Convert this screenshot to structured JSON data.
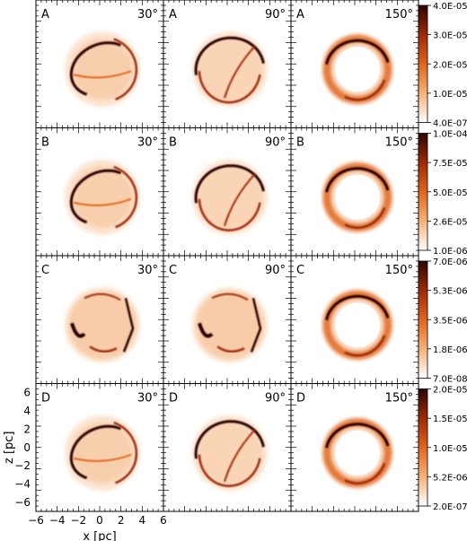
{
  "figure": {
    "rows": [
      {
        "label": "A",
        "colorbar": {
          "ticks": [
            "4.0E-05",
            "3.0E-05",
            "2.0E-05",
            "1.0E-05",
            "4.0E-07"
          ]
        },
        "panels": [
          {
            "row": "A",
            "angle": "30°",
            "shape": "tilted-ring"
          },
          {
            "row": "A",
            "angle": "90°",
            "shape": "ring"
          },
          {
            "row": "A",
            "angle": "150°",
            "shape": "ring-thick"
          }
        ]
      },
      {
        "label": "B",
        "colorbar": {
          "ticks": [
            "1.0E-04",
            "7.5E-05",
            "5.0E-05",
            "2.6E-05",
            "1.0E-06"
          ]
        },
        "panels": [
          {
            "row": "B",
            "angle": "30°",
            "shape": "tilted-ring"
          },
          {
            "row": "B",
            "angle": "90°",
            "shape": "ring"
          },
          {
            "row": "B",
            "angle": "150°",
            "shape": "ring-thick"
          }
        ]
      },
      {
        "label": "C",
        "colorbar": {
          "ticks": [
            "7.0E-06",
            "5.3E-06",
            "3.5E-06",
            "1.8E-06",
            "7.0E-08"
          ]
        },
        "panels": [
          {
            "row": "C",
            "angle": "30°",
            "shape": "filaments"
          },
          {
            "row": "C",
            "angle": "90°",
            "shape": "filaments"
          },
          {
            "row": "C",
            "angle": "150°",
            "shape": "ring-thick"
          }
        ]
      },
      {
        "label": "D",
        "colorbar": {
          "ticks": [
            "2.0E-05",
            "1.5E-05",
            "1.0E-05",
            "5.2E-06",
            "2.0E-07"
          ]
        },
        "panels": [
          {
            "row": "D",
            "angle": "30°",
            "shape": "tilted-ring"
          },
          {
            "row": "D",
            "angle": "90°",
            "shape": "ring"
          },
          {
            "row": "D",
            "angle": "150°",
            "shape": "ring-thick"
          }
        ]
      }
    ],
    "axes": {
      "xlabel": "x [pc]",
      "ylabel": "z [pc]",
      "xticks": [
        "−6",
        "−4",
        "−2",
        "0",
        "2",
        "4",
        "6"
      ],
      "yticks": [
        "6",
        "4",
        "2",
        "0",
        "−2",
        "−4",
        "−6"
      ],
      "range": [
        -6,
        6
      ]
    },
    "colormap": {
      "name": "white-orange-black",
      "stops": [
        "#ffffff",
        "#f5b27a",
        "#e0651b",
        "#9c2a08",
        "#2a0600"
      ]
    }
  }
}
